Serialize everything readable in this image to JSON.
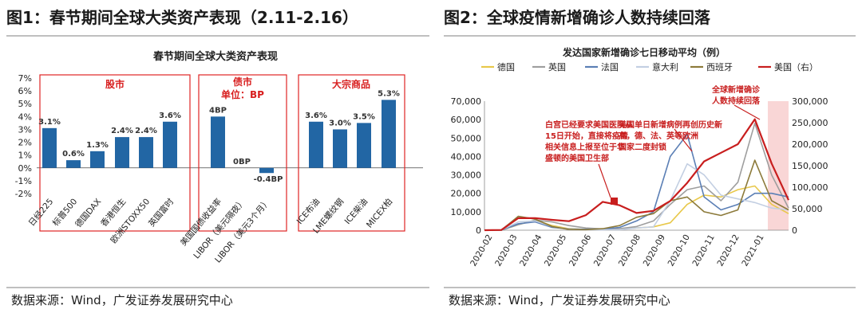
{
  "left": {
    "heading": "图1：春节期间全球大类资产表现（2.11-2.16）",
    "source": "数据来源：Wind，广发证券发展研究中心"
  },
  "right": {
    "heading": "图2：全球疫情新增确诊人数持续回落",
    "source": "数据来源：Wind，广发证券发展研究中心"
  },
  "chart_data": [
    {
      "type": "bar",
      "title": "春节期间全球大类资产表现",
      "ylim": [
        -2,
        7
      ],
      "y_ticks": [
        "7%",
        "6%",
        "5%",
        "4%",
        "3%",
        "2%",
        "1%",
        "0%",
        "-1%",
        "-2%"
      ],
      "color": "#2266a4",
      "categories": [
        "日经225",
        "标普500",
        "德国DAX",
        "香港恒生",
        "欧洲STOXX50",
        "英国富时",
        "美国国债收益率",
        "LIBOR（美元隔夜）",
        "LIBOR（美元3个月）",
        "ICE布油",
        "LME螺纹钢",
        "ICE柴油",
        "MICEX柏"
      ],
      "values": [
        3.1,
        0.6,
        1.3,
        2.4,
        2.4,
        3.6,
        4,
        0,
        -0.4,
        3.6,
        3.0,
        3.5,
        5.3
      ],
      "value_labels": [
        "3.1%",
        "0.6%",
        "1.3%",
        "2.4%",
        "2.4%",
        "3.6%",
        "4BP",
        "0BP",
        "-0.4BP",
        "3.6%",
        "3.0%",
        "3.5%",
        "5.3%"
      ],
      "groups": [
        {
          "label": "股市",
          "sub": ""
        },
        {
          "label": "债市",
          "sub_prefix": "单位：",
          "sub_value": "BP"
        },
        {
          "label": "大宗商品",
          "sub": ""
        }
      ]
    },
    {
      "type": "line",
      "title": "发达国家新增确诊七日移动平均（例）",
      "x_ticks": [
        "2020-02",
        "2020-03",
        "2020-04",
        "2020-05",
        "2020-06",
        "2020-07",
        "2020-08",
        "2020-09",
        "2020-10",
        "2020-11",
        "2020-12",
        "2021-01"
      ],
      "ylim_left": [
        0,
        70000
      ],
      "ylim_right": [
        0,
        300000
      ],
      "y_left_ticks": [
        "70,000",
        "60,000",
        "50,000",
        "40,000",
        "30,000",
        "20,000",
        "10,000",
        "0"
      ],
      "y_right_ticks": [
        "300,000",
        "250,000",
        "200,000",
        "150,000",
        "100,000",
        "50,000",
        "0"
      ],
      "series": [
        {
          "name": "德国",
          "color": "#e8c84a",
          "axis": "left",
          "values": [
            0,
            0,
            3000,
            5500,
            2500,
            800,
            400,
            400,
            600,
            1200,
            1800,
            4000,
            14000,
            19000,
            18000,
            22000,
            24000,
            14000,
            9000
          ]
        },
        {
          "name": "英国",
          "color": "#9e9e9e",
          "axis": "left",
          "values": [
            0,
            0,
            3000,
            5500,
            4500,
            2500,
            1200,
            700,
            800,
            2000,
            5000,
            14000,
            22000,
            24000,
            16000,
            26000,
            58000,
            30000,
            12000
          ]
        },
        {
          "name": "法国",
          "color": "#5b7fb5",
          "axis": "left",
          "values": [
            0,
            0,
            3500,
            4500,
            1500,
            700,
            500,
            600,
            1500,
            5000,
            10000,
            40000,
            52000,
            18000,
            11000,
            14000,
            20000,
            20000,
            18000
          ]
        },
        {
          "name": "意大利",
          "color": "#c3cfe2",
          "axis": "left",
          "values": [
            0,
            100,
            4500,
            5000,
            2000,
            500,
            300,
            250,
            300,
            1200,
            1800,
            16000,
            36000,
            30000,
            19000,
            17000,
            15000,
            12000,
            11000
          ]
        },
        {
          "name": "西班牙",
          "color": "#8c7a3a",
          "axis": "left",
          "values": [
            0,
            100,
            7500,
            6000,
            2000,
            400,
            300,
            800,
            2500,
            7000,
            9000,
            16000,
            18000,
            10000,
            8000,
            11000,
            38000,
            16000,
            11000
          ]
        },
        {
          "name": "美国（右）",
          "color": "#c81e1e",
          "axis": "right",
          "values": [
            0,
            500,
            28000,
            28000,
            24000,
            21000,
            35000,
            66000,
            58000,
            40000,
            45000,
            68000,
            110000,
            160000,
            180000,
            200000,
            258000,
            155000,
            70000
          ]
        }
      ],
      "annotations": [
        "白宫已经要求美国医院从15日开始，直接将疫情相关信息上报至位于华盛顿的美国卫生部",
        "美国单日新增病例再创历史新高，德、法、英等欧洲国家二度封锁",
        "全球新增确诊人数持续回落"
      ]
    }
  ]
}
